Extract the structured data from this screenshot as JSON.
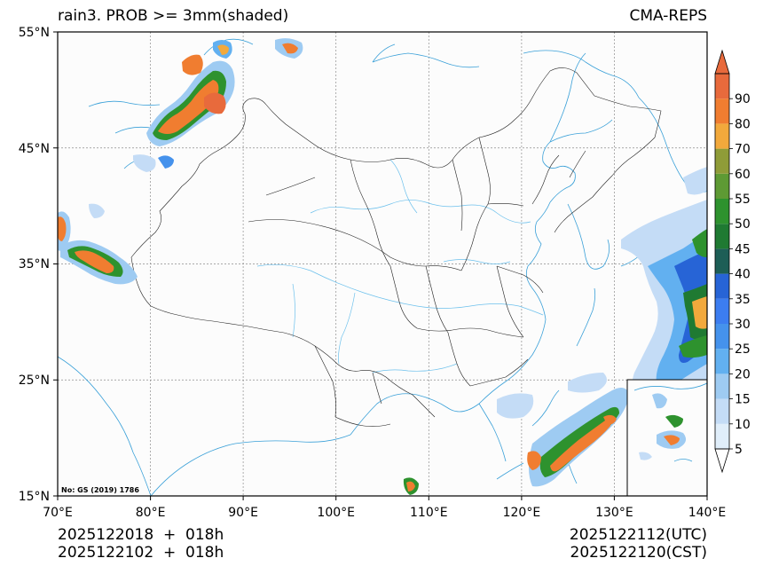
{
  "title": {
    "left": "rain3. PROB >= 3mm(shaded)",
    "right": "CMA-REPS"
  },
  "axes": {
    "lat_labels": [
      "55°N",
      "45°N",
      "35°N",
      "25°N",
      "15°N"
    ],
    "lon_labels": [
      "70°E",
      "80°E",
      "90°E",
      "100°E",
      "110°E",
      "120°E",
      "130°E",
      "140°E"
    ],
    "lat_range": [
      15,
      55
    ],
    "lon_range": [
      70,
      140
    ]
  },
  "colorbar": {
    "levels": [
      "5",
      "10",
      "15",
      "20",
      "25",
      "30",
      "35",
      "40",
      "45",
      "50",
      "55",
      "60",
      "70",
      "80",
      "90"
    ],
    "colors": [
      "#e0eefa",
      "#c4dcf6",
      "#9ecbf2",
      "#62b0f0",
      "#4592ec",
      "#3c7df0",
      "#2764d6",
      "#1d5e56",
      "#1f7a32",
      "#2e922e",
      "#5e9a34",
      "#8f9c38",
      "#f2a93c",
      "#f07d30",
      "#e86a3c"
    ],
    "extend": "both"
  },
  "stamp_left": {
    "line1": "2025122018  +  018h",
    "line2": "2025122102  +  018h"
  },
  "stamp_right": {
    "line1": "2025122112(UTC)",
    "line2": "2025122120(CST)"
  },
  "map_note": "No: GS (2019) 1786"
}
